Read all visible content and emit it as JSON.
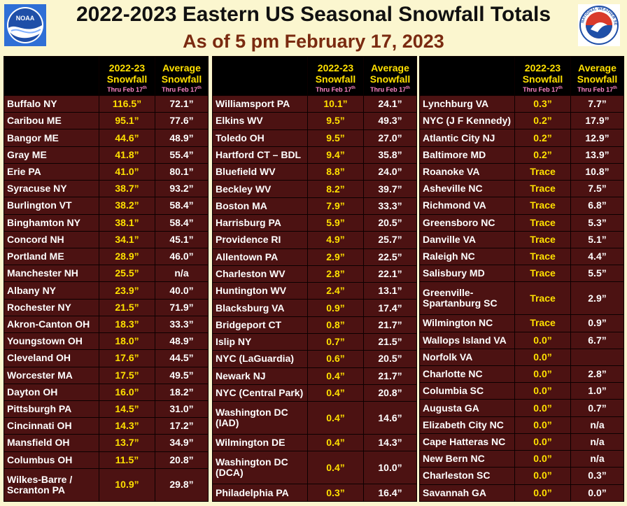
{
  "title": "2022-2023 Eastern US Seasonal Snowfall Totals",
  "subtitle": "As of 5 pm February 17, 2023",
  "header": {
    "current_line1": "2022-23",
    "current_line2": "Snowfall",
    "current_sub": "Thru Feb 17",
    "average_line1": "Average",
    "average_line2": "Snowfall",
    "average_sub": "Thru Feb 17",
    "sub_suffix": "th"
  },
  "columns": [
    [
      {
        "city": "Buffalo NY",
        "current": "116.5”",
        "average": "72.1”"
      },
      {
        "city": "Caribou ME",
        "current": "95.1”",
        "average": "77.6”"
      },
      {
        "city": "Bangor ME",
        "current": "44.6”",
        "average": "48.9”"
      },
      {
        "city": "Gray ME",
        "current": "41.8”",
        "average": "55.4”"
      },
      {
        "city": "Erie PA",
        "current": "41.0”",
        "average": "80.1”"
      },
      {
        "city": "Syracuse NY",
        "current": "38.7”",
        "average": "93.2”"
      },
      {
        "city": "Burlington VT",
        "current": "38.2”",
        "average": "58.4”"
      },
      {
        "city": "Binghamton NY",
        "current": "38.1”",
        "average": "58.4”"
      },
      {
        "city": "Concord NH",
        "current": "34.1”",
        "average": "45.1”"
      },
      {
        "city": "Portland ME",
        "current": "28.9”",
        "average": "46.0”"
      },
      {
        "city": "Manchester NH",
        "current": "25.5”",
        "average": "n/a"
      },
      {
        "city": "Albany NY",
        "current": "23.9”",
        "average": "40.0”"
      },
      {
        "city": "Rochester NY",
        "current": "21.5”",
        "average": "71.9”"
      },
      {
        "city": "Akron-Canton OH",
        "current": "18.3”",
        "average": "33.3”"
      },
      {
        "city": "Youngstown OH",
        "current": "18.0”",
        "average": "48.9”"
      },
      {
        "city": "Cleveland OH",
        "current": "17.6”",
        "average": "44.5”"
      },
      {
        "city": "Worcester MA",
        "current": "17.5”",
        "average": "49.5”"
      },
      {
        "city": "Dayton OH",
        "current": "16.0”",
        "average": "18.2”"
      },
      {
        "city": "Pittsburgh PA",
        "current": "14.5”",
        "average": "31.0”"
      },
      {
        "city": "Cincinnati OH",
        "current": "14.3”",
        "average": "17.2”"
      },
      {
        "city": "Mansfield OH",
        "current": "13.7”",
        "average": "34.9”"
      },
      {
        "city": "Columbus OH",
        "current": "11.5”",
        "average": "20.8”"
      },
      {
        "city": "Wilkes-Barre / Scranton PA",
        "current": "10.9”",
        "average": "29.8”",
        "wrap": true
      }
    ],
    [
      {
        "city": "Williamsport PA",
        "current": "10.1”",
        "average": "24.1”"
      },
      {
        "city": "Elkins WV",
        "current": "9.5”",
        "average": "49.3”"
      },
      {
        "city": "Toledo OH",
        "current": "9.5”",
        "average": "27.0”"
      },
      {
        "city": "Hartford CT – BDL",
        "current": "9.4”",
        "average": "35.8”"
      },
      {
        "city": "Bluefield WV",
        "current": "8.8”",
        "average": "24.0”"
      },
      {
        "city": "Beckley WV",
        "current": "8.2”",
        "average": "39.7”"
      },
      {
        "city": "Boston MA",
        "current": "7.9”",
        "average": "33.3”"
      },
      {
        "city": "Harrisburg PA",
        "current": "5.9”",
        "average": "20.5”"
      },
      {
        "city": "Providence RI",
        "current": "4.9”",
        "average": "25.7”"
      },
      {
        "city": "Allentown PA",
        "current": "2.9”",
        "average": "22.5”"
      },
      {
        "city": "Charleston WV",
        "current": "2.8”",
        "average": "22.1”"
      },
      {
        "city": "Huntington WV",
        "current": "2.4”",
        "average": "13.1”"
      },
      {
        "city": "Blacksburg VA",
        "current": "0.9”",
        "average": "17.4”"
      },
      {
        "city": "Bridgeport CT",
        "current": "0.8”",
        "average": "21.7”"
      },
      {
        "city": "Islip NY",
        "current": "0.7”",
        "average": "21.5”"
      },
      {
        "city": "NYC (LaGuardia)",
        "current": "0.6”",
        "average": "20.5”"
      },
      {
        "city": "Newark NJ",
        "current": "0.4”",
        "average": "21.7”"
      },
      {
        "city": "NYC (Central Park)",
        "current": "0.4”",
        "average": "20.8”"
      },
      {
        "city": "Washington DC (IAD)",
        "current": "0.4”",
        "average": "14.6”",
        "wrap": true
      },
      {
        "city": "Wilmington DE",
        "current": "0.4”",
        "average": "14.3”"
      },
      {
        "city": "Washington DC (DCA)",
        "current": "0.4”",
        "average": "10.0”",
        "wrap": true
      },
      {
        "city": "Philadelphia PA",
        "current": "0.3”",
        "average": "16.4”"
      }
    ],
    [
      {
        "city": "Lynchburg VA",
        "current": "0.3”",
        "average": "7.7”"
      },
      {
        "city": "NYC (J F Kennedy)",
        "current": "0.2”",
        "average": "17.9”"
      },
      {
        "city": "Atlantic City NJ",
        "current": "0.2”",
        "average": "12.9”"
      },
      {
        "city": "Baltimore MD",
        "current": "0.2”",
        "average": "13.9”"
      },
      {
        "city": "Roanoke VA",
        "current": "Trace",
        "average": "10.8”"
      },
      {
        "city": "Asheville NC",
        "current": "Trace",
        "average": "7.5”"
      },
      {
        "city": "Richmond VA",
        "current": "Trace",
        "average": "6.8”"
      },
      {
        "city": "Greensboro NC",
        "current": "Trace",
        "average": "5.3”"
      },
      {
        "city": "Danville VA",
        "current": "Trace",
        "average": "5.1”"
      },
      {
        "city": "Raleigh NC",
        "current": "Trace",
        "average": "4.4”"
      },
      {
        "city": "Salisbury MD",
        "current": "Trace",
        "average": "5.5”"
      },
      {
        "city": "Greenville-Spartanburg SC",
        "current": "Trace",
        "average": "2.9”",
        "wrap": true
      },
      {
        "city": "Wilmington NC",
        "current": "Trace",
        "average": "0.9”"
      },
      {
        "city": "Wallops Island VA",
        "current": "0.0”",
        "average": "6.7”"
      },
      {
        "city": "Norfolk VA",
        "current": "0.0”",
        "average": ""
      },
      {
        "city": "Charlotte NC",
        "current": "0.0”",
        "average": "2.8”"
      },
      {
        "city": "Columbia SC",
        "current": "0.0”",
        "average": "1.0”"
      },
      {
        "city": "Augusta GA",
        "current": "0.0”",
        "average": "0.7”"
      },
      {
        "city": "Elizabeth City NC",
        "current": "0.0”",
        "average": "n/a"
      },
      {
        "city": "Cape Hatteras NC",
        "current": "0.0”",
        "average": "n/a"
      },
      {
        "city": "New Bern NC",
        "current": "0.0”",
        "average": "n/a"
      },
      {
        "city": "Charleston SC",
        "current": "0.0”",
        "average": "0.3”"
      },
      {
        "city": "Savannah GA",
        "current": "0.0”",
        "average": "0.0”"
      }
    ]
  ],
  "colors": {
    "background": "#fbf6cf",
    "table_bg": "#4c1212",
    "header_bg": "#000000",
    "header_text": "#ffe000",
    "header_sub": "#ff88c8",
    "current_text": "#ffe000",
    "city_text": "#ffffff",
    "subtitle": "#7a2a10"
  },
  "logos": {
    "left_icon": "noaa-logo-icon",
    "right_icon": "nws-logo-icon",
    "left_text": "NOAA",
    "right_text": "NATIONAL WEATHER SERVICE"
  }
}
